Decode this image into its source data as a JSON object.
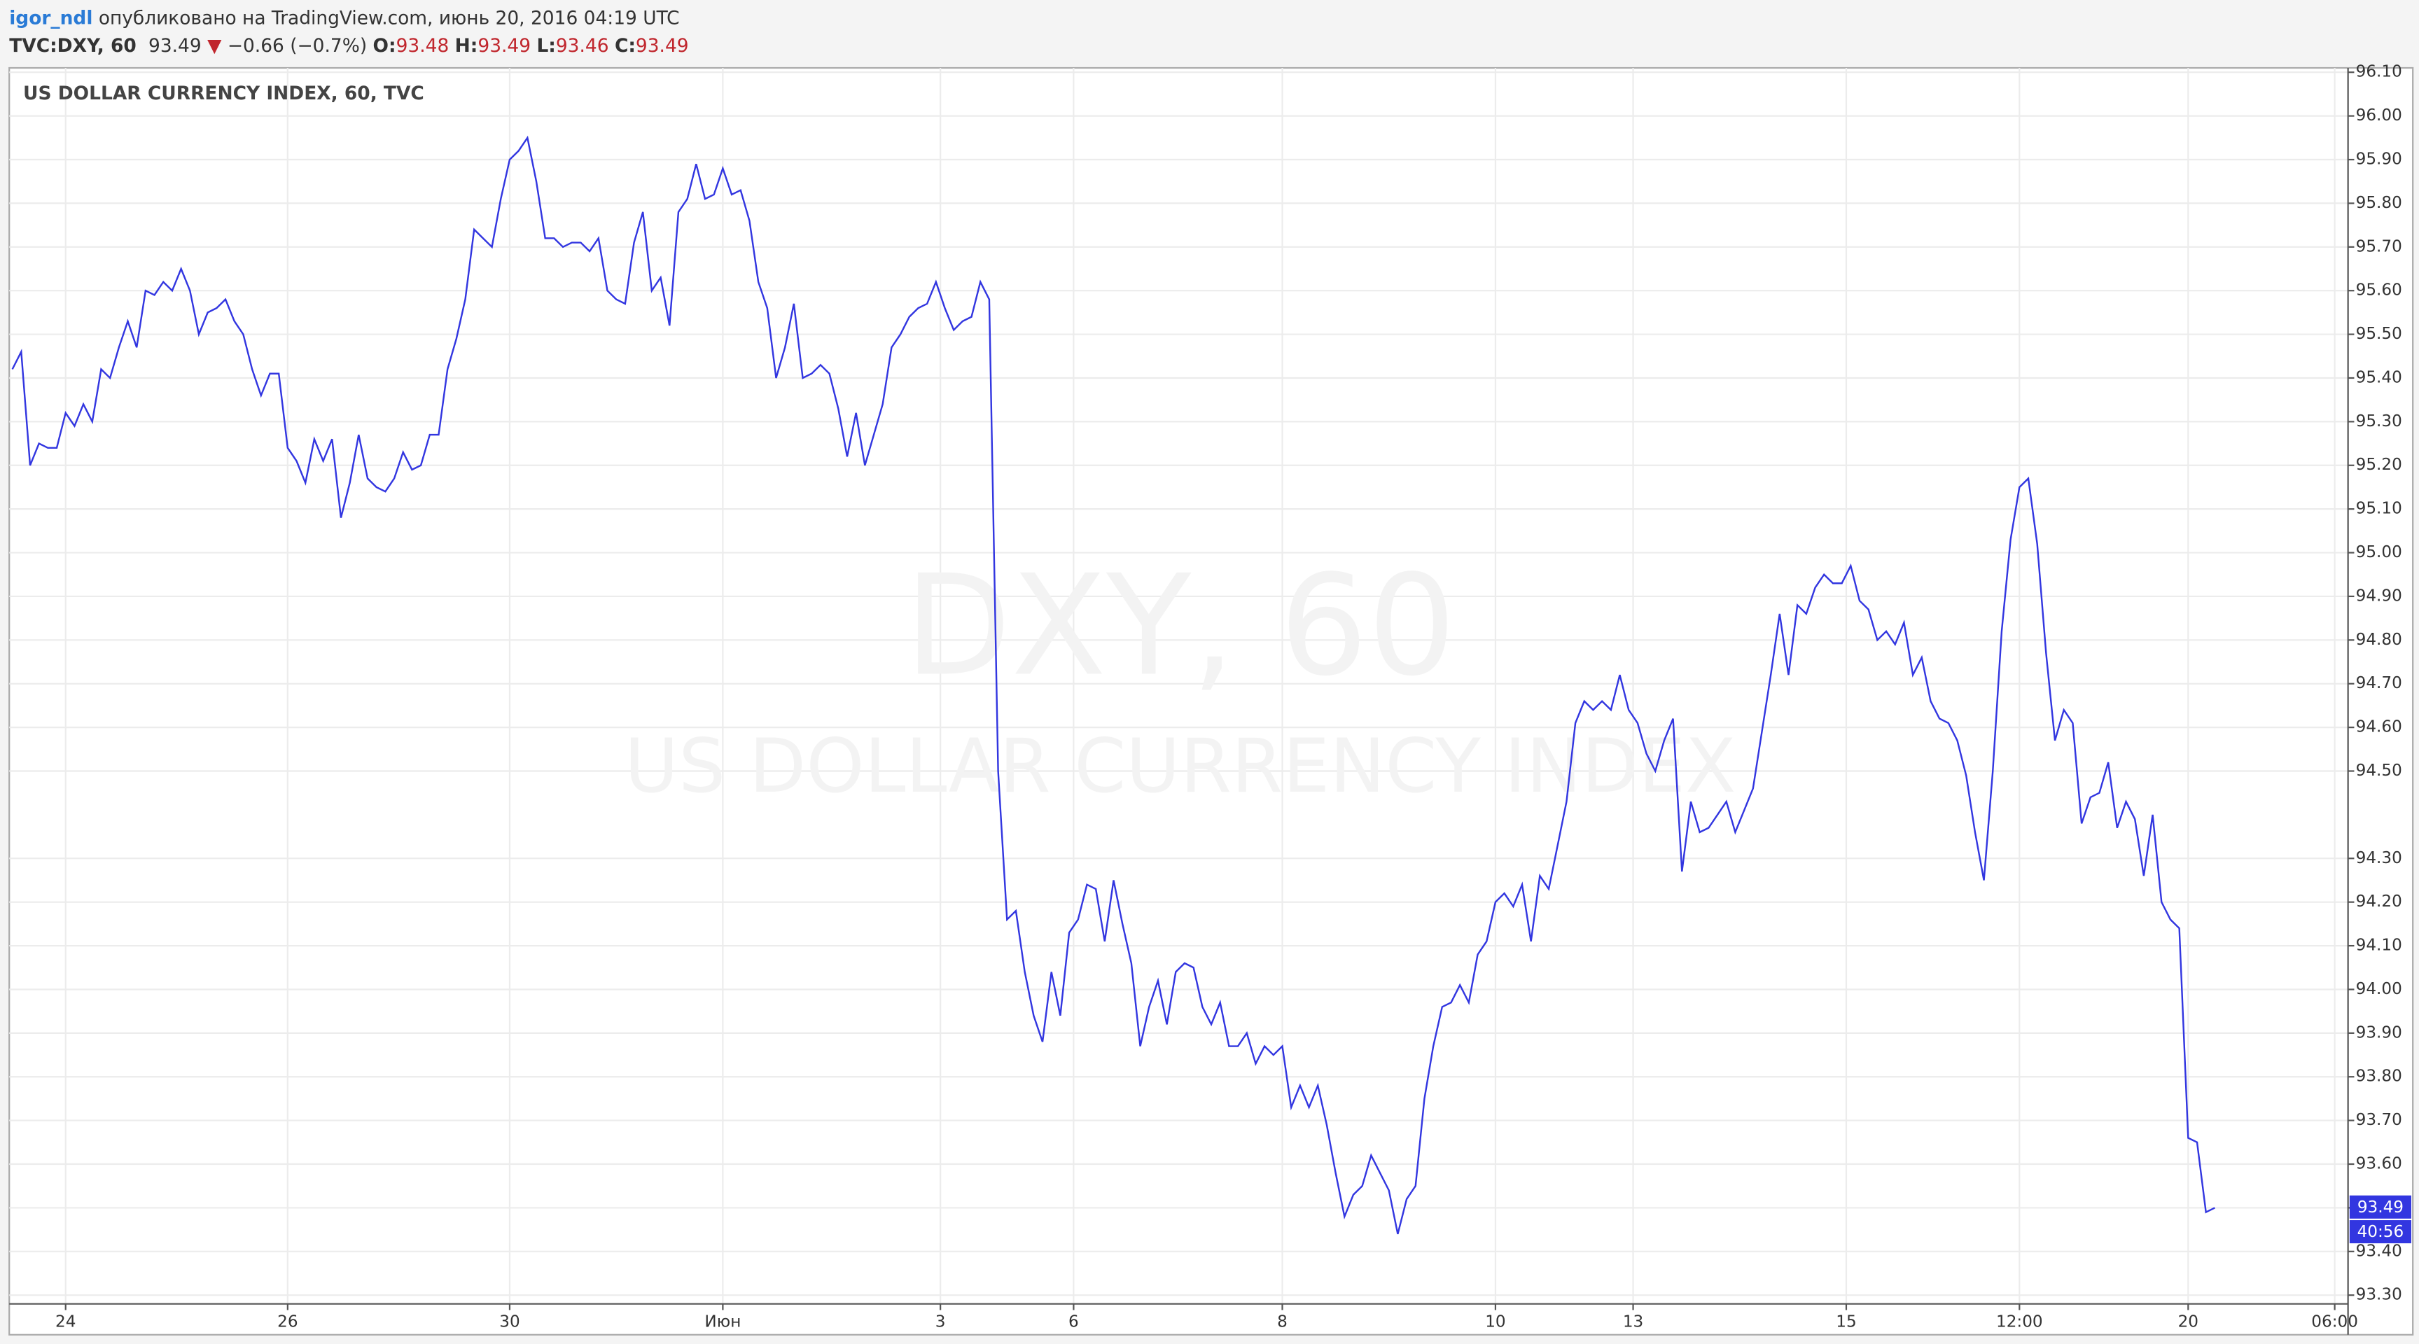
{
  "header": {
    "user": "igor_ndl",
    "published": "опубликовано на TradingView.com, июнь 20, 2016 04:19 UTC",
    "last": "93.49",
    "arrow": "▼",
    "change": "−0.66 (−0.7%)",
    "open_label": "O:",
    "open": "93.48",
    "high_label": "H:",
    "high": "93.49",
    "low_label": "L:",
    "low": "93.46",
    "close_label": "C:",
    "close": "93.49"
  },
  "badges": {
    "last_price": "93.49",
    "countdown": "40:56"
  },
  "chart_data": {
    "type": "line",
    "title": "US DOLLAR CURRENCY INDEX, 60, TVC",
    "watermark": [
      "DXY, 60",
      "US DOLLAR CURRENCY INDEX"
    ],
    "grid": true,
    "xlim": [
      0,
      263
    ],
    "xticks": [
      {
        "value": 6,
        "label": "24"
      },
      {
        "value": 31,
        "label": "26"
      },
      {
        "value": 56,
        "label": "30"
      },
      {
        "value": 80,
        "label": "Июн"
      },
      {
        "value": 104.5,
        "label": "3"
      },
      {
        "value": 119.5,
        "label": "6"
      },
      {
        "value": 143,
        "label": "8"
      },
      {
        "value": 167,
        "label": "10"
      },
      {
        "value": 182.5,
        "label": "13"
      },
      {
        "value": 206.5,
        "label": "15"
      },
      {
        "value": 226,
        "label": "12:00"
      },
      {
        "value": 245,
        "label": "20"
      },
      {
        "value": 261.5,
        "label": "06:00"
      }
    ],
    "ylim": [
      93.28,
      96.11
    ],
    "yticks": [
      {
        "value": 93.3,
        "label": "93.30"
      },
      {
        "value": 93.4,
        "label": "93.40"
      },
      {
        "value": 93.5,
        "label": "93.50"
      },
      {
        "value": 93.6,
        "label": "93.60"
      },
      {
        "value": 93.7,
        "label": "93.70"
      },
      {
        "value": 93.8,
        "label": "93.80"
      },
      {
        "value": 93.9,
        "label": "93.90"
      },
      {
        "value": 94.0,
        "label": "94.00"
      },
      {
        "value": 94.1,
        "label": "94.10"
      },
      {
        "value": 94.2,
        "label": "94.20"
      },
      {
        "value": 94.3,
        "label": "94.30"
      },
      {
        "value": 94.5,
        "label": "94.50"
      },
      {
        "value": 94.6,
        "label": "94.60"
      },
      {
        "value": 94.7,
        "label": "94.70"
      },
      {
        "value": 94.8,
        "label": "94.80"
      },
      {
        "value": 94.9,
        "label": "94.90"
      },
      {
        "value": 95.0,
        "label": "95.00"
      },
      {
        "value": 95.1,
        "label": "95.10"
      },
      {
        "value": 95.2,
        "label": "95.20"
      },
      {
        "value": 95.3,
        "label": "95.30"
      },
      {
        "value": 95.4,
        "label": "95.40"
      },
      {
        "value": 95.5,
        "label": "95.50"
      },
      {
        "value": 95.6,
        "label": "95.60"
      },
      {
        "value": 95.7,
        "label": "95.70"
      },
      {
        "value": 95.8,
        "label": "95.80"
      },
      {
        "value": 95.9,
        "label": "95.90"
      },
      {
        "value": 96.0,
        "label": "96.00"
      },
      {
        "value": 96.1,
        "label": "96.10"
      }
    ],
    "series": [
      {
        "name": "TVC:DXY, 60",
        "color": "#3236e0",
        "values": [
          95.42,
          95.46,
          95.2,
          95.25,
          95.24,
          95.24,
          95.32,
          95.29,
          95.34,
          95.3,
          95.42,
          95.4,
          95.47,
          95.53,
          95.47,
          95.6,
          95.59,
          95.62,
          95.6,
          95.65,
          95.6,
          95.5,
          95.55,
          95.56,
          95.58,
          95.53,
          95.5,
          95.42,
          95.36,
          95.41,
          95.41,
          95.24,
          95.21,
          95.16,
          95.26,
          95.21,
          95.26,
          95.08,
          95.16,
          95.27,
          95.17,
          95.15,
          95.14,
          95.17,
          95.23,
          95.19,
          95.2,
          95.27,
          95.27,
          95.42,
          95.49,
          95.58,
          95.74,
          95.72,
          95.7,
          95.81,
          95.9,
          95.92,
          95.95,
          95.85,
          95.72,
          95.72,
          95.7,
          95.71,
          95.71,
          95.69,
          95.72,
          95.6,
          95.58,
          95.57,
          95.71,
          95.78,
          95.6,
          95.63,
          95.52,
          95.78,
          95.81,
          95.89,
          95.81,
          95.82,
          95.88,
          95.82,
          95.83,
          95.76,
          95.62,
          95.56,
          95.4,
          95.47,
          95.57,
          95.4,
          95.41,
          95.43,
          95.41,
          95.33,
          95.22,
          95.32,
          95.2,
          95.27,
          95.34,
          95.47,
          95.5,
          95.54,
          95.56,
          95.57,
          95.62,
          95.56,
          95.51,
          95.53,
          95.54,
          95.62,
          95.58,
          94.5,
          94.16,
          94.18,
          94.04,
          93.94,
          93.88,
          94.04,
          93.94,
          94.13,
          94.16,
          94.24,
          94.23,
          94.11,
          94.25,
          94.15,
          94.06,
          93.87,
          93.96,
          94.02,
          93.92,
          94.04,
          94.06,
          94.05,
          93.96,
          93.92,
          93.97,
          93.87,
          93.87,
          93.9,
          93.83,
          93.87,
          93.85,
          93.87,
          93.73,
          93.78,
          93.73,
          93.78,
          93.69,
          93.58,
          93.48,
          93.53,
          93.55,
          93.62,
          93.58,
          93.54,
          93.44,
          93.52,
          93.55,
          93.75,
          93.87,
          93.96,
          93.97,
          94.01,
          93.97,
          94.08,
          94.11,
          94.2,
          94.22,
          94.19,
          94.24,
          94.11,
          94.26,
          94.23,
          94.33,
          94.43,
          94.61,
          94.66,
          94.64,
          94.66,
          94.64,
          94.72,
          94.64,
          94.61,
          94.54,
          94.5,
          94.57,
          94.62,
          94.27,
          94.43,
          94.36,
          94.37,
          94.4,
          94.43,
          94.36,
          94.41,
          94.46,
          94.59,
          94.72,
          94.86,
          94.72,
          94.88,
          94.86,
          94.92,
          94.95,
          94.93,
          94.93,
          94.97,
          94.89,
          94.87,
          94.8,
          94.82,
          94.79,
          94.84,
          94.72,
          94.76,
          94.66,
          94.62,
          94.61,
          94.57,
          94.49,
          94.36,
          94.25,
          94.5,
          94.82,
          95.03,
          95.15,
          95.17,
          95.02,
          94.77,
          94.57,
          94.64,
          94.61,
          94.38,
          94.44,
          94.45,
          94.52,
          94.37,
          94.43,
          94.39,
          94.26,
          94.4,
          94.2,
          94.16,
          94.14,
          93.66,
          93.65,
          93.49,
          93.5
        ]
      }
    ]
  }
}
